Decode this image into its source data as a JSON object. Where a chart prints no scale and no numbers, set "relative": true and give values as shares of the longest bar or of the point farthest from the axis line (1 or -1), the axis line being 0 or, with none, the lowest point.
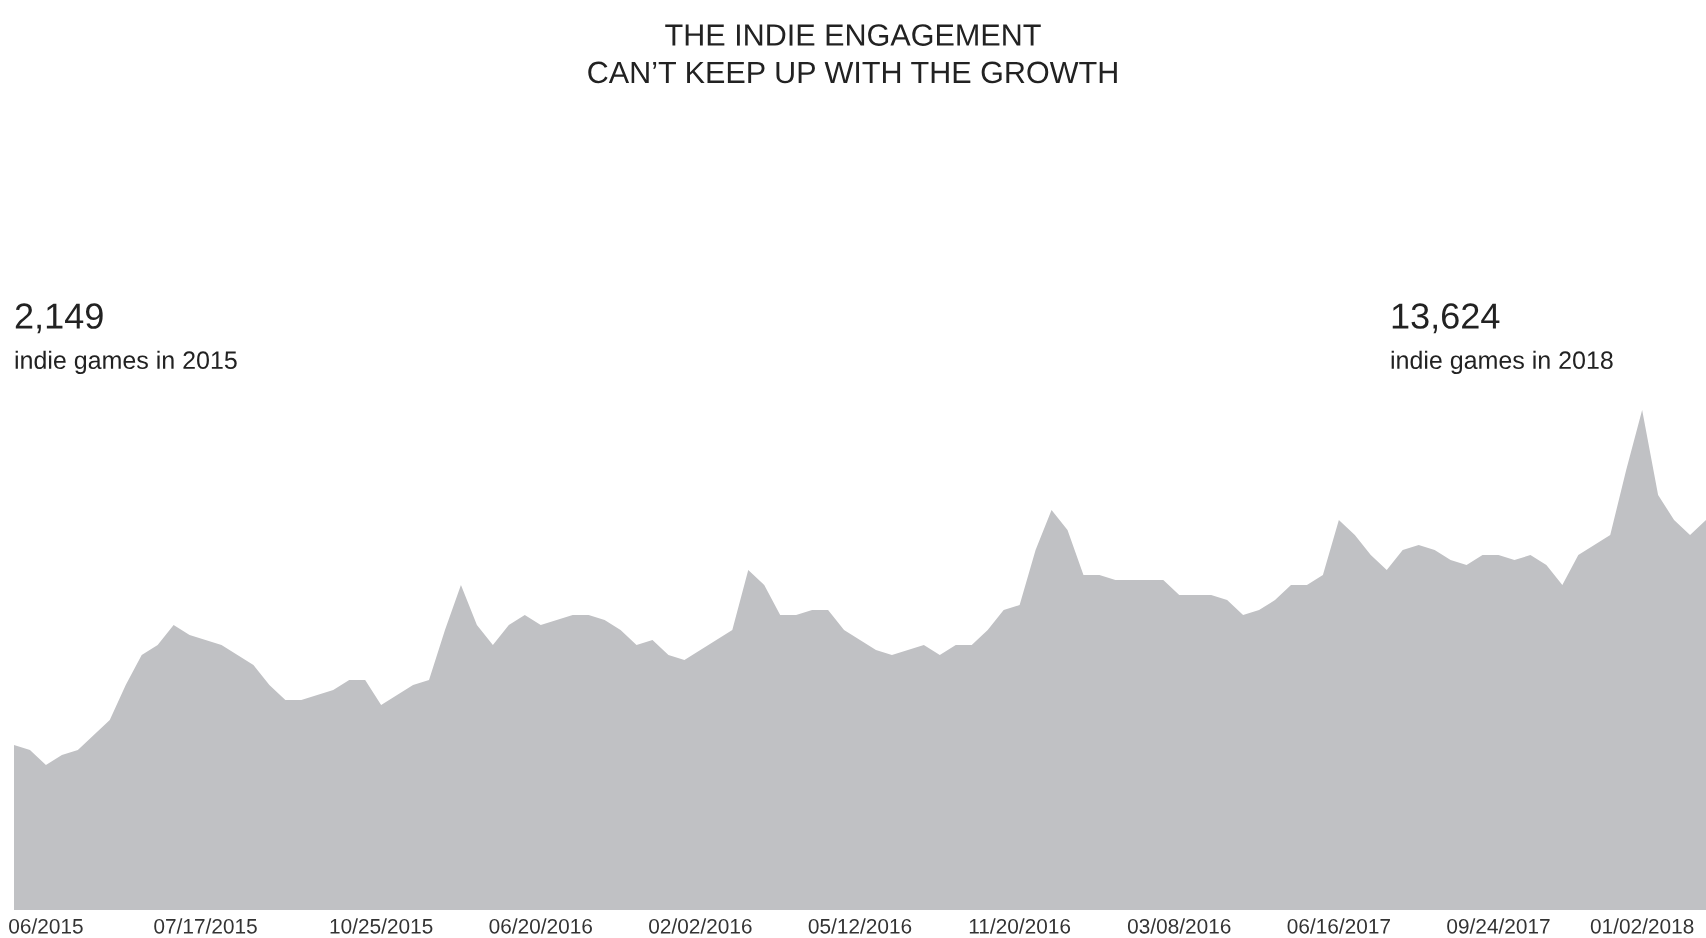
{
  "chart_data": {
    "type": "area",
    "relative": true,
    "title": "THE INDIE ENGAGEMENT\nCAN’T KEEP UP WITH THE GROWTH",
    "annotations": [
      "2,149",
      "indie games in 2015",
      "13,624",
      "indie games in 2018"
    ],
    "categories": [
      null,
      null,
      "06/2015",
      null,
      null,
      null,
      null,
      null,
      null,
      null,
      null,
      null,
      "07/17/2015",
      null,
      null,
      null,
      null,
      null,
      null,
      null,
      null,
      null,
      null,
      "10/25/2015",
      null,
      null,
      null,
      null,
      null,
      null,
      null,
      null,
      null,
      "06/20/2016",
      null,
      null,
      null,
      null,
      null,
      null,
      null,
      null,
      null,
      "02/02/2016",
      null,
      null,
      null,
      null,
      null,
      null,
      null,
      null,
      null,
      "05/12/2016",
      null,
      null,
      null,
      null,
      null,
      null,
      null,
      null,
      null,
      "11/20/2016",
      null,
      null,
      null,
      null,
      null,
      null,
      null,
      null,
      null,
      "03/08/2016",
      null,
      null,
      null,
      null,
      null,
      null,
      null,
      null,
      null,
      "06/16/2017",
      null,
      null,
      null,
      null,
      null,
      null,
      null,
      null,
      null,
      "09/24/2017",
      null,
      null,
      null,
      null,
      null,
      null,
      null,
      null,
      "01/02/2018",
      null,
      null,
      null,
      null
    ],
    "series": [
      {
        "color": "#c0c1c4",
        "values": [
          0.33,
          0.32,
          0.29,
          0.31,
          0.32,
          0.35,
          0.38,
          0.45,
          0.51,
          0.53,
          0.57,
          0.55,
          0.54,
          0.53,
          0.51,
          0.49,
          0.45,
          0.42,
          0.42,
          0.43,
          0.44,
          0.46,
          0.46,
          0.41,
          0.43,
          0.45,
          0.46,
          0.56,
          0.65,
          0.57,
          0.53,
          0.57,
          0.59,
          0.57,
          0.58,
          0.59,
          0.59,
          0.58,
          0.56,
          0.53,
          0.54,
          0.51,
          0.5,
          0.52,
          0.54,
          0.56,
          0.68,
          0.65,
          0.59,
          0.59,
          0.6,
          0.6,
          0.56,
          0.54,
          0.52,
          0.51,
          0.52,
          0.53,
          0.51,
          0.53,
          0.53,
          0.56,
          0.6,
          0.61,
          0.72,
          0.8,
          0.76,
          0.67,
          0.67,
          0.66,
          0.66,
          0.66,
          0.66,
          0.63,
          0.63,
          0.63,
          0.62,
          0.59,
          0.6,
          0.62,
          0.65,
          0.65,
          0.67,
          0.78,
          0.75,
          0.71,
          0.68,
          0.72,
          0.73,
          0.72,
          0.7,
          0.69,
          0.71,
          0.71,
          0.7,
          0.71,
          0.69,
          0.65,
          0.71,
          0.73,
          0.75,
          0.88,
          1,
          0.83,
          0.78,
          0.75,
          0.78
        ]
      }
    ]
  }
}
